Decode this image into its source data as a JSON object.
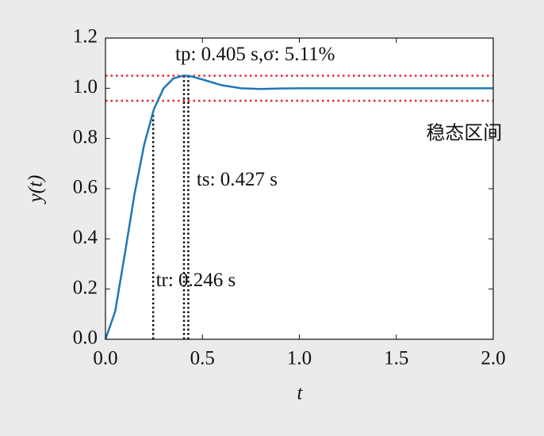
{
  "chart_data": {
    "type": "line",
    "xlabel": "t",
    "ylabel": "y(t)",
    "x": [
      0,
      0.05,
      0.1,
      0.15,
      0.2,
      0.25,
      0.3,
      0.35,
      0.405,
      0.45,
      0.5,
      0.6,
      0.7,
      0.8,
      0.9,
      1.0,
      1.2,
      1.4,
      1.6,
      1.8,
      2.0
    ],
    "series": [
      {
        "color": "#1f77b4",
        "values": [
          0,
          0.111,
          0.34,
          0.58,
          0.777,
          0.917,
          1.0,
          1.039,
          1.051,
          1.046,
          1.035,
          1.012,
          1.0,
          0.997,
          0.999,
          1.0,
          1.0,
          1.0,
          1.0,
          1.0,
          1.0
        ]
      }
    ],
    "hlines": {
      "color": "#e8262a",
      "values": [
        1.05,
        0.95
      ]
    },
    "vlines": [
      {
        "x": 0.246,
        "y": 0.9
      },
      {
        "x": 0.405,
        "y": 1.05
      },
      {
        "x": 0.427,
        "y": 1.05
      }
    ],
    "annotations": [
      {
        "text": "tp: 0.405 s,σ: 5.11%",
        "x": 0.36,
        "y": 1.13
      },
      {
        "text": "ts: 0.427 s",
        "x": 0.47,
        "y": 0.63
      },
      {
        "text": "tr: 0.246 s",
        "x": 0.26,
        "y": 0.23
      },
      {
        "text": "稳态区间",
        "x": 1.85,
        "y": 0.82
      }
    ],
    "xlim": [
      0,
      2.0
    ],
    "ylim": [
      0,
      1.2
    ],
    "xticks": [
      {
        "value": 0,
        "label": "0.0"
      },
      0.5,
      {
        "value": 1,
        "label": "1.0"
      },
      1.5,
      {
        "value": 2,
        "label": "2.0"
      }
    ],
    "yticks": [
      {
        "value": 0,
        "label": "0.0"
      },
      0.2,
      0.4,
      0.6,
      0.8,
      {
        "value": 1,
        "label": "1.0"
      },
      1.2
    ]
  }
}
